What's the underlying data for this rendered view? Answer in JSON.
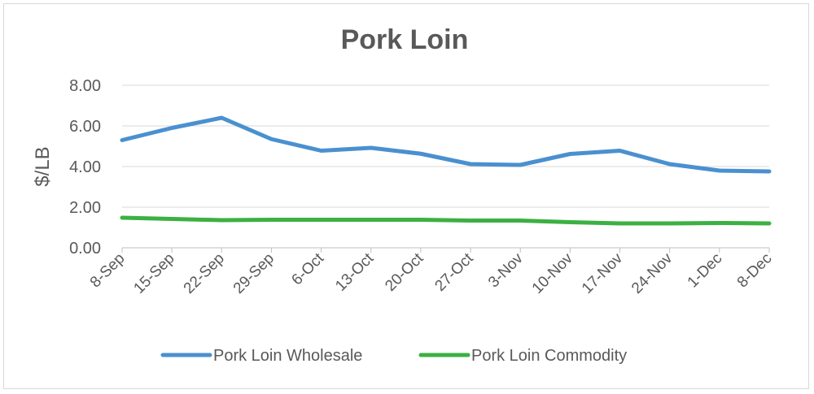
{
  "chart_data": {
    "type": "line",
    "title": "Pork Loin",
    "xlabel": "",
    "ylabel": "$/LB",
    "ylim": [
      0,
      8
    ],
    "yticks": [
      "0.00",
      "2.00",
      "4.00",
      "6.00",
      "8.00"
    ],
    "grid": true,
    "legend_position": "bottom",
    "categories": [
      "8-Sep",
      "15-Sep",
      "22-Sep",
      "29-Sep",
      "6-Oct",
      "13-Oct",
      "20-Oct",
      "27-Oct",
      "3-Nov",
      "10-Nov",
      "17-Nov",
      "24-Nov",
      "1-Dec",
      "8-Dec"
    ],
    "series": [
      {
        "name": "Pork Loin Wholesale",
        "color": "#4a90d0",
        "values": [
          5.3,
          5.9,
          6.4,
          5.35,
          4.78,
          4.92,
          4.63,
          4.12,
          4.08,
          4.62,
          4.78,
          4.12,
          3.8,
          3.76
        ]
      },
      {
        "name": "Pork Loin Commodity",
        "color": "#3cb043",
        "values": [
          1.48,
          1.42,
          1.36,
          1.38,
          1.38,
          1.38,
          1.38,
          1.34,
          1.34,
          1.26,
          1.2,
          1.2,
          1.22,
          1.2
        ]
      }
    ]
  }
}
